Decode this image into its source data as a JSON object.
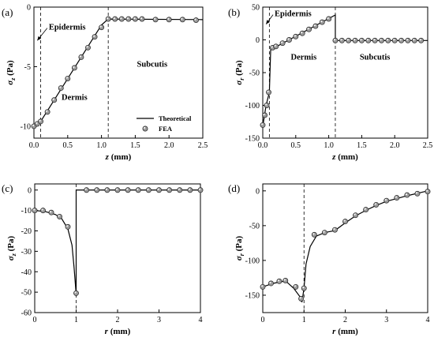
{
  "chart_data": [
    {
      "panel": "(a)",
      "type": "line",
      "xlabel": {
        "sym": "z",
        "unit": " (mm)"
      },
      "ylabel": {
        "sym": "σ",
        "sub": "z",
        "unit": " (Pa)"
      },
      "xlim": [
        0,
        2.5
      ],
      "ylim": [
        -11,
        0
      ],
      "xticks": [
        0,
        0.5,
        1,
        1.5,
        2,
        2.5
      ],
      "xtick_labels": [
        "0.0",
        "0.5",
        "1.0",
        "1.5",
        "2.0",
        "2.5"
      ],
      "yticks": [
        0,
        -5,
        -10
      ],
      "ytick_labels": [
        "0",
        "-5",
        "-10"
      ],
      "dashed_x": [
        0.1,
        1.1
      ],
      "series": [
        {
          "name": "Theoretical",
          "style": "line",
          "x": [
            0,
            0.1,
            1.0,
            1.1,
            2.5
          ],
          "y": [
            -10.0,
            -9.6,
            -1.5,
            -1.0,
            -1.05
          ]
        },
        {
          "name": "FEA",
          "style": "marker",
          "x": [
            0.0,
            0.05,
            0.1,
            0.2,
            0.3,
            0.4,
            0.5,
            0.6,
            0.7,
            0.8,
            0.9,
            1.0,
            1.1,
            1.2,
            1.3,
            1.4,
            1.5,
            1.6,
            1.8,
            2.0,
            2.2,
            2.4
          ],
          "y": [
            -10.0,
            -9.8,
            -9.6,
            -8.8,
            -7.8,
            -6.8,
            -6.0,
            -5.1,
            -4.2,
            -3.4,
            -2.5,
            -1.7,
            -1.0,
            -1.0,
            -1.0,
            -1.0,
            -1.0,
            -1.0,
            -1.05,
            -1.05,
            -1.05,
            -1.1
          ]
        }
      ],
      "legend": {
        "position": "bottom-right",
        "line_label": "Theoretical",
        "marker_label": "FEA"
      },
      "annotations": [
        {
          "text": "Epidermis",
          "x": 0.22,
          "y": -1.9,
          "arrow_to": [
            0.05,
            -2.8
          ]
        },
        {
          "text": "Dermis",
          "x": 0.6,
          "y": -7.8
        },
        {
          "text": "Subcutis",
          "x": 1.75,
          "y": -5.0
        }
      ]
    },
    {
      "panel": "(b)",
      "type": "line",
      "xlabel": {
        "sym": "z",
        "unit": " (mm)"
      },
      "ylabel": {
        "sym": "σ",
        "sub": "r",
        "unit": " (Pa)"
      },
      "xlim": [
        0,
        2.5
      ],
      "ylim": [
        -150,
        50
      ],
      "xticks": [
        0,
        0.5,
        1,
        1.5,
        2,
        2.5
      ],
      "xtick_labels": [
        "0.0",
        "0.5",
        "1.0",
        "1.5",
        "2.0",
        "2.5"
      ],
      "yticks": [
        50,
        0,
        -50,
        -100,
        -150
      ],
      "ytick_labels": [
        "50",
        "0",
        "-50",
        "-100",
        "-150"
      ],
      "dashed_x": [
        0.1,
        1.1
      ],
      "series": [
        {
          "name": "Theoretical",
          "style": "line",
          "x": [
            0,
            0.05,
            0.1,
            0.12,
            1.1,
            1.1,
            2.5
          ],
          "y": [
            -132,
            -100,
            -80,
            -15,
            38,
            -1,
            -1
          ]
        },
        {
          "name": "FEA",
          "style": "marker",
          "x": [
            0.0,
            0.03,
            0.06,
            0.09,
            0.15,
            0.2,
            0.3,
            0.4,
            0.5,
            0.6,
            0.7,
            0.8,
            0.9,
            1.0,
            1.1,
            1.2,
            1.3,
            1.4,
            1.5,
            1.6,
            1.7,
            1.8,
            1.9,
            2.0,
            2.1,
            2.2,
            2.3,
            2.4
          ],
          "y": [
            -130,
            -115,
            -100,
            -80,
            -12,
            -10,
            -5,
            0,
            5,
            10,
            16,
            21,
            27,
            32,
            -1,
            -1,
            -1,
            -1,
            -1,
            -1,
            -1,
            -1,
            -1,
            -1,
            -1,
            -1,
            -1,
            -1
          ]
        }
      ],
      "annotations": [
        {
          "text": "Epidermis",
          "x": 0.18,
          "y": 36,
          "arrow_to": [
            0.05,
            24
          ]
        },
        {
          "text": "Dermis",
          "x": 0.62,
          "y": -30
        },
        {
          "text": "Subcutis",
          "x": 1.7,
          "y": -30
        }
      ]
    },
    {
      "panel": "(c)",
      "type": "line",
      "xlabel": {
        "sym": "r",
        "unit": " (mm)"
      },
      "ylabel": {
        "sym": "σ",
        "sub": "z",
        "unit": " (Pa)"
      },
      "xlim": [
        0,
        4
      ],
      "ylim": [
        -60,
        3
      ],
      "xticks": [
        0,
        1,
        2,
        3,
        4
      ],
      "xtick_labels": [
        "0",
        "1",
        "2",
        "3",
        "4"
      ],
      "yticks": [
        0,
        -10,
        -20,
        -30,
        -40,
        -50,
        -60
      ],
      "ytick_labels": [
        "0",
        "-10",
        "-20",
        "-30",
        "-40",
        "-50",
        "-60"
      ],
      "dashed_x": [
        1.0
      ],
      "series": [
        {
          "name": "Theoretical",
          "style": "line",
          "x": [
            0,
            0.25,
            0.5,
            0.65,
            0.8,
            0.9,
            0.95,
            1.0,
            1.0,
            4.0
          ],
          "y": [
            -10,
            -10.5,
            -12,
            -14,
            -19,
            -27,
            -38,
            -51,
            0,
            0
          ]
        },
        {
          "name": "FEA",
          "style": "marker",
          "x": [
            0.0,
            0.2,
            0.4,
            0.6,
            0.8,
            1.0,
            1.25,
            1.5,
            1.75,
            2.0,
            2.25,
            2.5,
            2.75,
            3.0,
            3.25,
            3.5,
            3.75,
            4.0
          ],
          "y": [
            -10,
            -10,
            -11,
            -13,
            -18,
            -50.5,
            0,
            0,
            0,
            0,
            0,
            0,
            0,
            0,
            0,
            0,
            0,
            0
          ]
        }
      ]
    },
    {
      "panel": "(d)",
      "type": "line",
      "xlabel": {
        "sym": "r",
        "unit": " (mm)"
      },
      "ylabel": {
        "sym": "σ",
        "sub": "r",
        "unit": " (Pa)"
      },
      "xlim": [
        0,
        4
      ],
      "ylim": [
        -175,
        10
      ],
      "xticks": [
        0,
        1,
        2,
        3,
        4
      ],
      "xtick_labels": [
        "0",
        "1",
        "2",
        "3",
        "4"
      ],
      "yticks": [
        0,
        -50,
        -100,
        -150
      ],
      "ytick_labels": [
        "0",
        "-50",
        "-100",
        "-150"
      ],
      "dashed_x": [
        1.0
      ],
      "series": [
        {
          "name": "Theoretical",
          "style": "line",
          "x": [
            0,
            0.25,
            0.5,
            0.6,
            0.75,
            0.9,
            0.95,
            1.0,
            1.05,
            1.15,
            1.3,
            1.5,
            1.75,
            2.0,
            2.25,
            2.5,
            2.75,
            3.0,
            3.5,
            4.0
          ],
          "y": [
            -138,
            -133,
            -130,
            -132,
            -140,
            -152,
            -160,
            -140,
            -105,
            -80,
            -65,
            -60,
            -57,
            -46,
            -36,
            -28,
            -21,
            -15,
            -7,
            0
          ]
        },
        {
          "name": "FEA",
          "style": "marker",
          "x": [
            0.0,
            0.2,
            0.4,
            0.55,
            0.8,
            0.93,
            1.0,
            1.25,
            1.5,
            1.75,
            2.0,
            2.25,
            2.5,
            2.75,
            3.0,
            3.25,
            3.5,
            3.75,
            4.0
          ],
          "y": [
            -138,
            -133,
            -130,
            -129,
            -138,
            -155,
            -140,
            -63,
            -60,
            -56,
            -44,
            -35,
            -27,
            -20,
            -14,
            -10,
            -6,
            -4,
            -1
          ]
        }
      ]
    }
  ]
}
